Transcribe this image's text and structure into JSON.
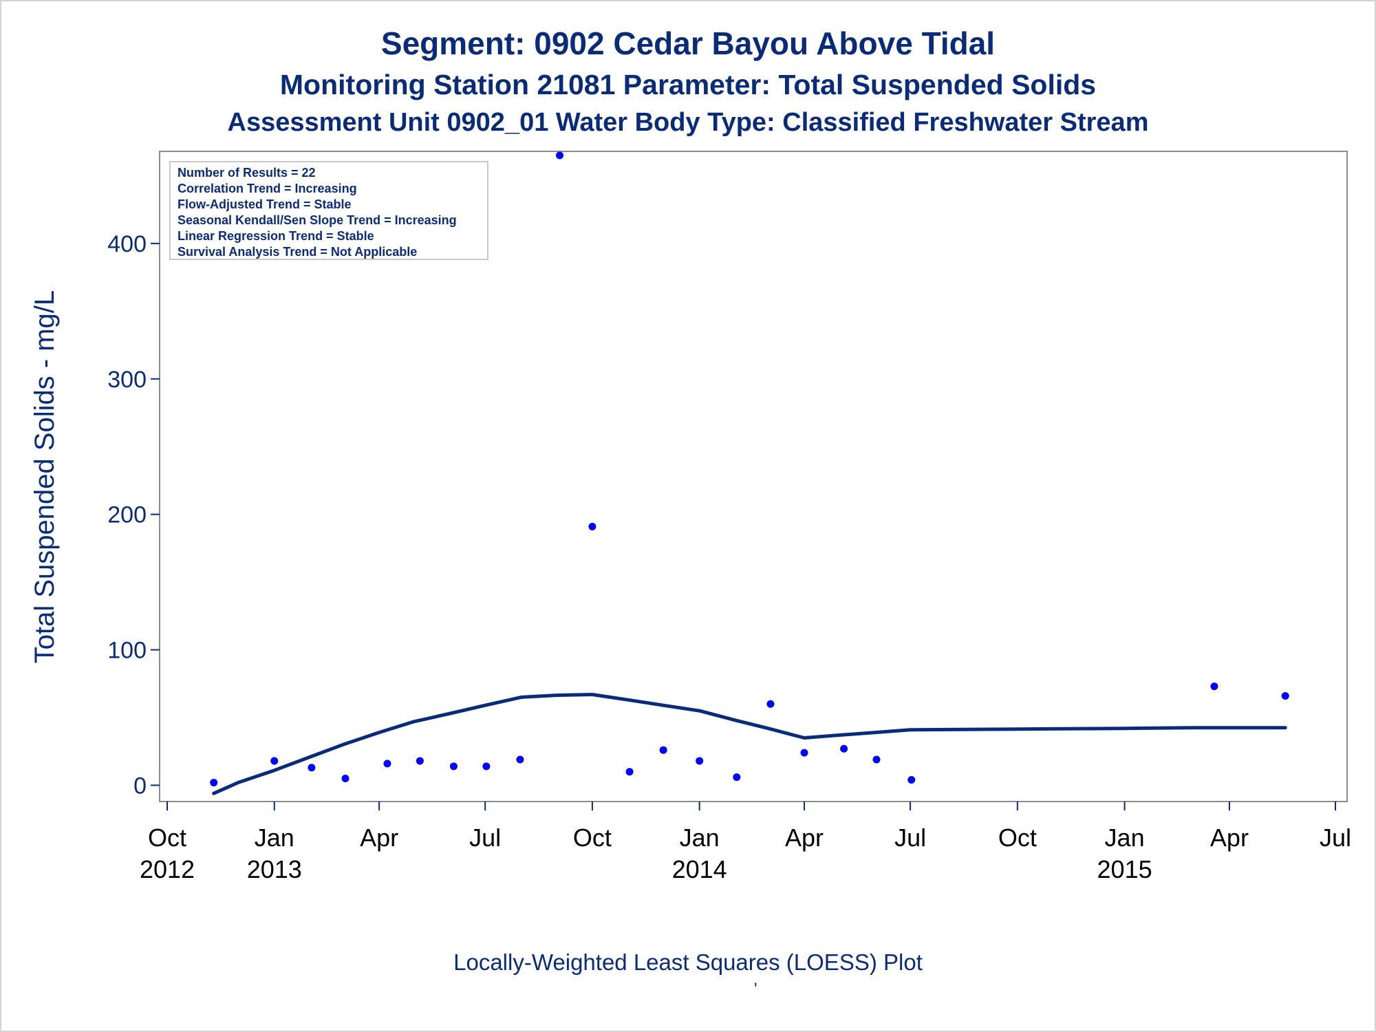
{
  "chart_data": {
    "type": "scatter",
    "title": "Segment: 0902  Cedar Bayou Above Tidal",
    "subtitles": [
      "Monitoring Station 21081 Parameter: Total Suspended Solids",
      "Assessment Unit 0902_01    Water Body Type: Classified Freshwater Stream"
    ],
    "ylabel": "Total Suspended Solids - mg/L",
    "xlabel": "",
    "footnote": "Locally-Weighted Least Squares (LOESS) Plot",
    "footnote_mark": "'",
    "ylim": [
      -12,
      468
    ],
    "xlim": [
      "2012-10-01",
      "2015-07-01"
    ],
    "y_ticks": [
      0,
      100,
      200,
      300,
      400
    ],
    "x_ticks": [
      {
        "date": "2012-10-01",
        "label": "Oct",
        "sublabel": "2012"
      },
      {
        "date": "2013-01-01",
        "label": "Jan",
        "sublabel": "2013"
      },
      {
        "date": "2013-04-01",
        "label": "Apr",
        "sublabel": ""
      },
      {
        "date": "2013-07-01",
        "label": "Jul",
        "sublabel": ""
      },
      {
        "date": "2013-10-01",
        "label": "Oct",
        "sublabel": ""
      },
      {
        "date": "2014-01-01",
        "label": "Jan",
        "sublabel": "2014"
      },
      {
        "date": "2014-04-01",
        "label": "Apr",
        "sublabel": ""
      },
      {
        "date": "2014-07-01",
        "label": "Jul",
        "sublabel": ""
      },
      {
        "date": "2014-10-01",
        "label": "Oct",
        "sublabel": ""
      },
      {
        "date": "2015-01-01",
        "label": "Jan",
        "sublabel": "2015"
      },
      {
        "date": "2015-04-01",
        "label": "Apr",
        "sublabel": ""
      },
      {
        "date": "2015-07-01",
        "label": "Jul",
        "sublabel": ""
      }
    ],
    "grid": false,
    "legend_position": "top-left",
    "stats_box": [
      "Number of Results = 22",
      "Correlation Trend = Increasing",
      "Flow-Adjusted Trend = Stable",
      "Seasonal Kendall/Sen Slope Trend = Increasing",
      "Linear Regression Trend = Stable",
      "Survival Analysis Trend = Not Applicable"
    ],
    "series": [
      {
        "kind": "points",
        "color": "#0000ff",
        "points": [
          {
            "x": "2012-11-10",
            "y": 2
          },
          {
            "x": "2013-01-01",
            "y": 18
          },
          {
            "x": "2013-02-02",
            "y": 13
          },
          {
            "x": "2013-03-03",
            "y": 5
          },
          {
            "x": "2013-04-08",
            "y": 16
          },
          {
            "x": "2013-05-06",
            "y": 18
          },
          {
            "x": "2013-06-04",
            "y": 14
          },
          {
            "x": "2013-07-02",
            "y": 14
          },
          {
            "x": "2013-07-31",
            "y": 19
          },
          {
            "x": "2013-09-03",
            "y": 465
          },
          {
            "x": "2013-10-01",
            "y": 191
          },
          {
            "x": "2013-11-02",
            "y": 10
          },
          {
            "x": "2013-12-01",
            "y": 26
          },
          {
            "x": "2014-01-01",
            "y": 18
          },
          {
            "x": "2014-02-02",
            "y": 6
          },
          {
            "x": "2014-03-03",
            "y": 60
          },
          {
            "x": "2014-04-01",
            "y": 24
          },
          {
            "x": "2014-05-05",
            "y": 27
          },
          {
            "x": "2014-06-02",
            "y": 19
          },
          {
            "x": "2014-07-02",
            "y": 4
          },
          {
            "x": "2015-03-19",
            "y": 73
          },
          {
            "x": "2015-05-19",
            "y": 66
          }
        ]
      },
      {
        "kind": "loess",
        "color": "#0a2c78",
        "points": [
          {
            "x": "2012-11-10",
            "y": -6
          },
          {
            "x": "2012-12-01",
            "y": 2
          },
          {
            "x": "2013-01-01",
            "y": 11
          },
          {
            "x": "2013-02-01",
            "y": 21
          },
          {
            "x": "2013-03-01",
            "y": 30
          },
          {
            "x": "2013-04-01",
            "y": 39
          },
          {
            "x": "2013-05-01",
            "y": 47
          },
          {
            "x": "2013-06-01",
            "y": 53
          },
          {
            "x": "2013-07-01",
            "y": 59
          },
          {
            "x": "2013-08-01",
            "y": 65
          },
          {
            "x": "2013-09-01",
            "y": 66.5
          },
          {
            "x": "2013-10-01",
            "y": 67
          },
          {
            "x": "2013-11-01",
            "y": 63
          },
          {
            "x": "2013-12-01",
            "y": 59
          },
          {
            "x": "2014-01-01",
            "y": 55
          },
          {
            "x": "2014-02-01",
            "y": 48
          },
          {
            "x": "2014-03-01",
            "y": 42
          },
          {
            "x": "2014-04-01",
            "y": 35
          },
          {
            "x": "2014-05-01",
            "y": 37
          },
          {
            "x": "2014-06-01",
            "y": 39
          },
          {
            "x": "2014-07-01",
            "y": 41
          },
          {
            "x": "2014-10-01",
            "y": 41.5
          },
          {
            "x": "2015-01-01",
            "y": 42
          },
          {
            "x": "2015-03-01",
            "y": 42.5
          },
          {
            "x": "2015-05-19",
            "y": 42.5
          }
        ]
      }
    ]
  }
}
